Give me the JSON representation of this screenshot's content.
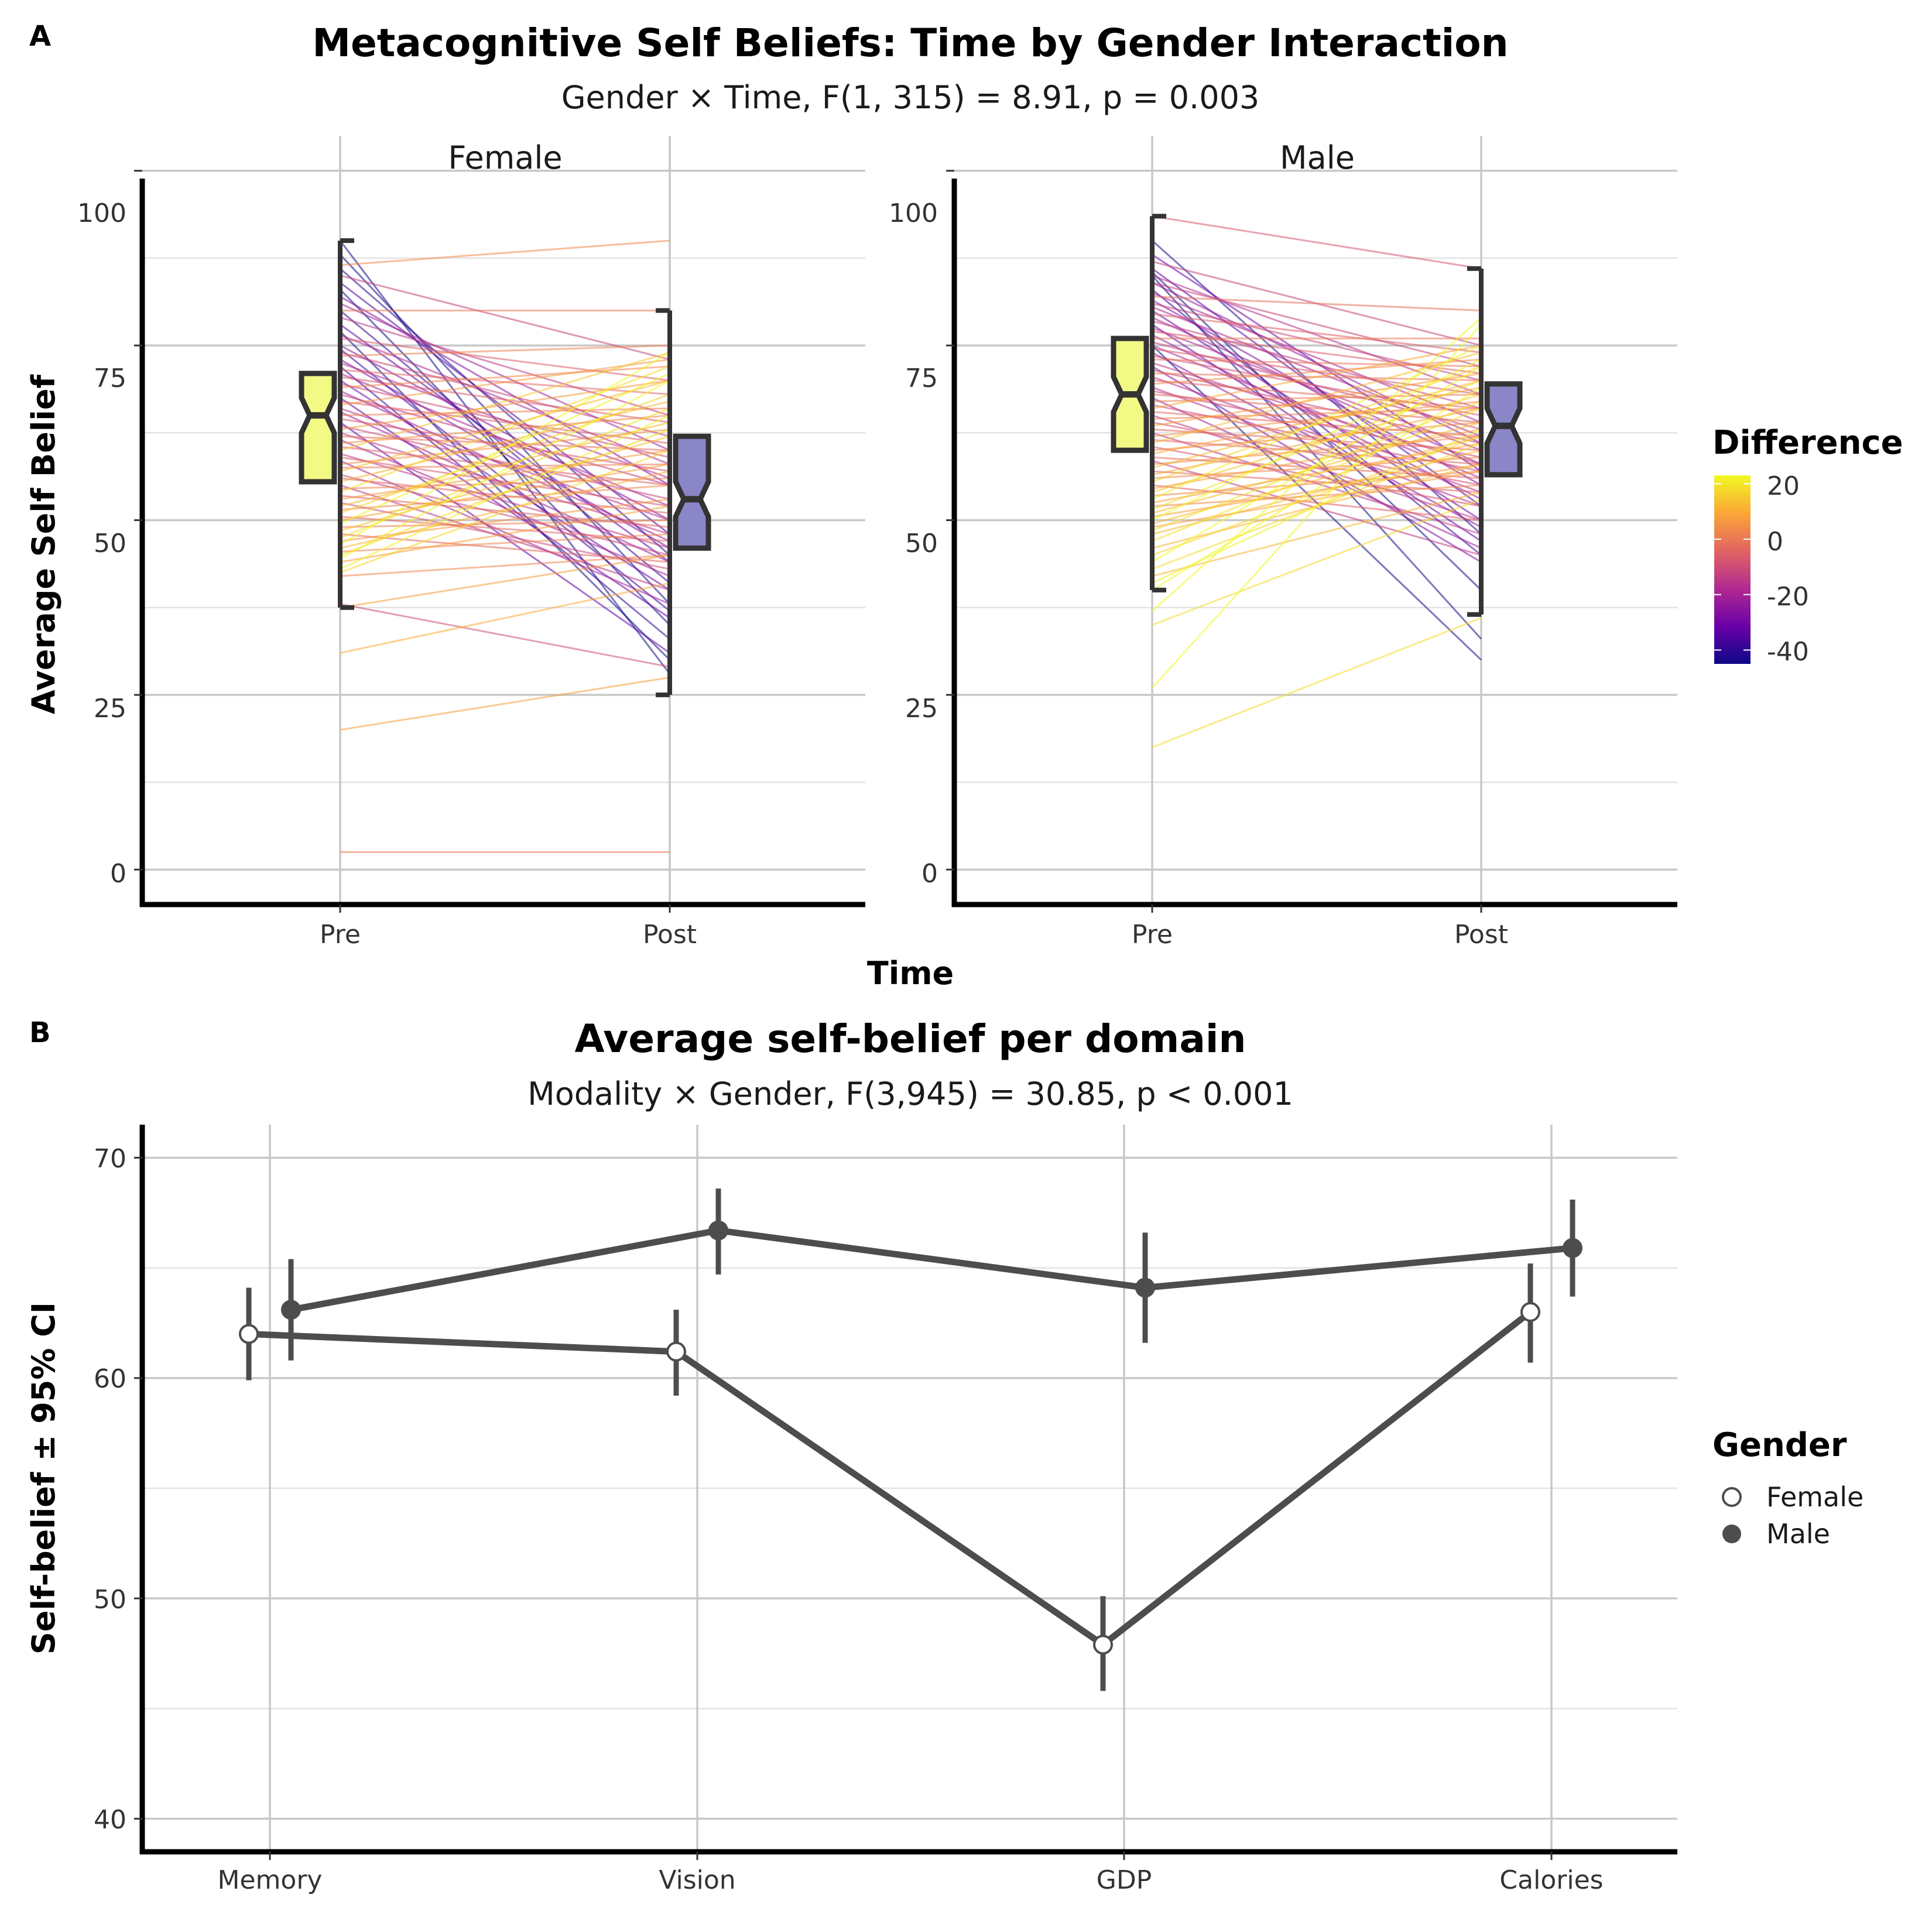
{
  "chart_data": [
    {
      "panel_label": "A",
      "type": "line",
      "title": "Metacognitive Self Beliefs: Time by Gender Interaction",
      "subtitle": "Gender × Time, F(1, 315) = 8.91, p = 0.003",
      "xlabel": "Time",
      "ylabel": "Average Self Belief",
      "categories": [
        "Pre",
        "Post"
      ],
      "ylim": [
        -5,
        105
      ],
      "yticks": [
        0,
        25,
        50,
        75,
        100
      ],
      "grid": true,
      "legend": {
        "title": "Difference",
        "type": "colorbar",
        "placement": "right",
        "range": [
          -45,
          23
        ],
        "ticks": [
          20,
          0,
          -20,
          -40
        ],
        "colors": [
          "#0d0887",
          "#6a00a8",
          "#b12a90",
          "#e16462",
          "#fca636",
          "#f0f921"
        ]
      },
      "facets": [
        {
          "name": "Female",
          "box_fill": [
            "#f2f985",
            "#8a86c8"
          ],
          "boxplots": [
            {
              "x": "Pre",
              "whisker_low": 37.5,
              "q1": 55.5,
              "median": 65,
              "q3": 71,
              "whisker_high": 90
            },
            {
              "x": "Post",
              "whisker_low": 25,
              "q1": 46,
              "median": 53,
              "q3": 62,
              "whisker_high": 80
            }
          ],
          "pairs": [
            [
              90,
              28
            ],
            [
              88,
              38
            ],
            [
              86.5,
              90
            ],
            [
              86,
              45
            ],
            [
              85,
              73
            ],
            [
              84,
              48
            ],
            [
              83,
              35
            ],
            [
              82,
              55
            ],
            [
              81,
              60
            ],
            [
              80,
              41
            ],
            [
              80,
              80
            ],
            [
              79,
              65
            ],
            [
              78,
              44
            ],
            [
              77,
              30
            ],
            [
              76.5,
              58
            ],
            [
              76,
              70
            ],
            [
              75,
              50
            ],
            [
              74.5,
              37
            ],
            [
              74,
              62
            ],
            [
              73.5,
              75
            ],
            [
              73,
              46
            ],
            [
              72.5,
              56
            ],
            [
              72,
              33
            ],
            [
              71.5,
              68
            ],
            [
              71,
              52
            ],
            [
              70.5,
              64
            ],
            [
              70,
              40
            ],
            [
              69.5,
              59
            ],
            [
              69,
              72
            ],
            [
              68.5,
              47
            ],
            [
              68,
              55
            ],
            [
              67.5,
              36
            ],
            [
              67,
              61
            ],
            [
              66.5,
              73
            ],
            [
              66,
              50
            ],
            [
              65.5,
              44
            ],
            [
              65,
              66
            ],
            [
              64.5,
              57
            ],
            [
              64,
              31
            ],
            [
              63.5,
              53
            ],
            [
              63,
              70
            ],
            [
              62.5,
              48
            ],
            [
              62,
              60
            ],
            [
              61.5,
              42
            ],
            [
              61,
              65
            ],
            [
              60.5,
              55
            ],
            [
              60,
              74
            ],
            [
              59.5,
              46
            ],
            [
              59,
              52
            ],
            [
              58.5,
              38
            ],
            [
              58,
              63
            ],
            [
              57.5,
              58
            ],
            [
              57,
              70
            ],
            [
              56.5,
              45
            ],
            [
              56,
              51
            ],
            [
              55.5,
              67
            ],
            [
              55,
              40
            ],
            [
              54.5,
              56
            ],
            [
              54,
              72
            ],
            [
              53.5,
              49
            ],
            [
              53,
              60
            ],
            [
              52.5,
              43
            ],
            [
              52,
              64
            ],
            [
              51.5,
              55
            ],
            [
              51,
              68
            ],
            [
              50.5,
              47
            ],
            [
              50,
              58
            ],
            [
              49.5,
              71
            ],
            [
              49,
              50
            ],
            [
              48.5,
              62
            ],
            [
              48,
              44
            ],
            [
              47.5,
              66
            ],
            [
              47,
              53
            ],
            [
              46.5,
              74
            ],
            [
              46,
              57
            ],
            [
              45.5,
              48
            ],
            [
              45,
              63
            ],
            [
              44.5,
              70
            ],
            [
              44,
              52
            ],
            [
              43,
              65
            ],
            [
              42.5,
              60
            ],
            [
              42,
              45
            ],
            [
              38,
              29
            ],
            [
              37.5,
              45
            ],
            [
              31,
              41
            ],
            [
              20,
              27.5
            ],
            [
              2.5,
              2.5
            ]
          ]
        },
        {
          "name": "Male",
          "box_fill": [
            "#f2f985",
            "#8a86c8"
          ],
          "boxplots": [
            {
              "x": "Pre",
              "whisker_low": 40,
              "q1": 60,
              "median": 68,
              "q3": 76,
              "whisker_high": 93.5
            },
            {
              "x": "Post",
              "whisker_low": 36.5,
              "q1": 56.5,
              "median": 63.5,
              "q3": 69.5,
              "whisker_high": 86
            }
          ],
          "pairs": [
            [
              93.5,
              86
            ],
            [
              90,
              48
            ],
            [
              88,
              57
            ],
            [
              87,
              75
            ],
            [
              86,
              52
            ],
            [
              85.5,
              40
            ],
            [
              85,
              33
            ],
            [
              85,
              68
            ],
            [
              84,
              61
            ],
            [
              84,
              72
            ],
            [
              83,
              45
            ],
            [
              82.5,
              64
            ],
            [
              82,
              80
            ],
            [
              81.5,
              55
            ],
            [
              81,
              70
            ],
            [
              80.5,
              62
            ],
            [
              80,
              50
            ],
            [
              79.5,
              74
            ],
            [
              79,
              58
            ],
            [
              78.5,
              66
            ],
            [
              78,
              47
            ],
            [
              77.5,
              60
            ],
            [
              77,
              71
            ],
            [
              76.5,
              53
            ],
            [
              76,
              76
            ],
            [
              75.5,
              63
            ],
            [
              75,
              30
            ],
            [
              75,
              56
            ],
            [
              74.5,
              68
            ],
            [
              74,
              49
            ],
            [
              73.5,
              65
            ],
            [
              73,
              72
            ],
            [
              72.5,
              58
            ],
            [
              72,
              44
            ],
            [
              71.5,
              61
            ],
            [
              71,
              70
            ],
            [
              70.5,
              54
            ],
            [
              70,
              66
            ],
            [
              69.5,
              73
            ],
            [
              69,
              52
            ],
            [
              68.5,
              59
            ],
            [
              68,
              64
            ],
            [
              67.5,
              46
            ],
            [
              67,
              68
            ],
            [
              66.5,
              57
            ],
            [
              66,
              75
            ],
            [
              65.5,
              62
            ],
            [
              65,
              50
            ],
            [
              64.5,
              66
            ],
            [
              64,
              55
            ],
            [
              63.5,
              71
            ],
            [
              63,
              60
            ],
            [
              62.5,
              48
            ],
            [
              62,
              67
            ],
            [
              61.5,
              58
            ],
            [
              61,
              74
            ],
            [
              60.5,
              52
            ],
            [
              60,
              64
            ],
            [
              59.5,
              69
            ],
            [
              59,
              56
            ],
            [
              58.5,
              45
            ],
            [
              58,
              62
            ],
            [
              57.5,
              70
            ],
            [
              57,
              54
            ],
            [
              56.5,
              66
            ],
            [
              56,
              59
            ],
            [
              55.5,
              72
            ],
            [
              55,
              50
            ],
            [
              54.5,
              63
            ],
            [
              54,
              68
            ],
            [
              53.5,
              57
            ],
            [
              53,
              75
            ],
            [
              52.5,
              61
            ],
            [
              52,
              55
            ],
            [
              51.5,
              70
            ],
            [
              51,
              64
            ],
            [
              50.5,
              58
            ],
            [
              50,
              73
            ],
            [
              49.5,
              62
            ],
            [
              49,
              57
            ],
            [
              48.5,
              67
            ],
            [
              48,
              60
            ],
            [
              47,
              66
            ],
            [
              46,
              58
            ],
            [
              45,
              62
            ],
            [
              44,
              72
            ],
            [
              43,
              61
            ],
            [
              42,
              54
            ],
            [
              41,
              63
            ],
            [
              40,
              69
            ],
            [
              37,
              79
            ],
            [
              35,
              53
            ],
            [
              26,
              78
            ],
            [
              17.5,
              36
            ]
          ]
        }
      ]
    },
    {
      "panel_label": "B",
      "type": "line",
      "title": "Average self-belief per domain",
      "subtitle": "Modality × Gender, F(3,945) = 30.85, p < 0.001",
      "xlabel": "",
      "ylabel": "Self-belief ± 95% CI",
      "categories": [
        "Memory",
        "Vision",
        "GDP",
        "Calories"
      ],
      "ylim": [
        38.5,
        71.5
      ],
      "yticks": [
        40,
        50,
        60,
        70
      ],
      "grid": true,
      "legend": {
        "title": "Gender",
        "placement": "right"
      },
      "series": [
        {
          "name": "Female",
          "marker": "open-circle",
          "values": [
            62,
            61.2,
            47.9,
            63
          ],
          "ci_low": [
            59.9,
            59.2,
            45.8,
            60.7
          ],
          "ci_high": [
            64.1,
            63.1,
            50.1,
            65.2
          ]
        },
        {
          "name": "Male",
          "marker": "filled-circle",
          "values": [
            63.1,
            66.7,
            64.1,
            65.9
          ],
          "ci_low": [
            60.8,
            64.7,
            61.6,
            63.7
          ],
          "ci_high": [
            65.4,
            68.6,
            66.6,
            68.1
          ]
        }
      ]
    }
  ]
}
